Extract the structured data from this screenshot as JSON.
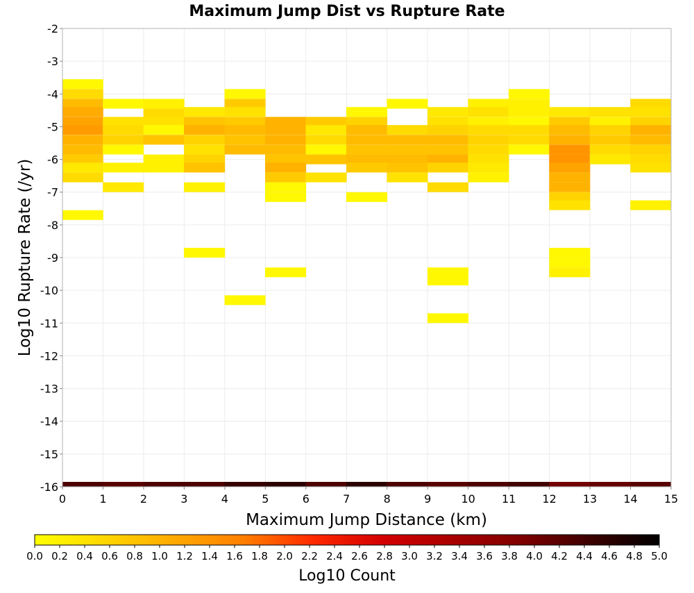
{
  "chart_data": {
    "type": "heatmap",
    "title": "Maximum Jump Dist vs Rupture Rate",
    "xlabel": "Maximum Jump Distance (km)",
    "ylabel": "Log10 Rupture Rate (/yr)",
    "xlim": [
      0,
      15
    ],
    "ylim": [
      -16,
      -2
    ],
    "x_ticks": [
      "0",
      "1",
      "2",
      "3",
      "4",
      "5",
      "6",
      "7",
      "8",
      "9",
      "10",
      "11",
      "12",
      "13",
      "14",
      "15"
    ],
    "y_ticks": [
      "-2",
      "-3",
      "-4",
      "-5",
      "-6",
      "-7",
      "-8",
      "-9",
      "-10",
      "-11",
      "-12",
      "-13",
      "-14",
      "-15",
      "-16"
    ],
    "grid": true,
    "bin_width_x": 1,
    "bin_height_y": 0.285,
    "colorbar": {
      "label": "Log10 Count",
      "range": [
        0,
        5
      ],
      "tick_labels": [
        "0.0",
        "0.2",
        "0.4",
        "0.6",
        "0.8",
        "1.0",
        "1.2",
        "1.4",
        "1.6",
        "1.8",
        "2.0",
        "2.2",
        "2.4",
        "2.6",
        "2.8",
        "3.0",
        "3.2",
        "3.4",
        "3.6",
        "3.8",
        "4.0",
        "4.2",
        "4.4",
        "4.6",
        "4.8",
        "5.0"
      ],
      "colors": [
        "#ffff00",
        "#ffd700",
        "#ffaa00",
        "#ff7f00",
        "#ff2a00",
        "#d40000",
        "#aa0000",
        "#7f0000",
        "#3c0000",
        "#000000"
      ]
    },
    "columns": [
      {
        "x": 0.5,
        "cells": [
          [
            -3.7,
            0.1
          ],
          [
            -4.0,
            0.5
          ],
          [
            -4.3,
            0.9
          ],
          [
            -4.55,
            1.1
          ],
          [
            -4.85,
            1.2
          ],
          [
            -5.1,
            1.3
          ],
          [
            -5.4,
            1.0
          ],
          [
            -5.7,
            0.9
          ],
          [
            -6.0,
            0.7
          ],
          [
            -6.25,
            0.3
          ],
          [
            -6.55,
            0.5
          ],
          [
            -7.7,
            0.1
          ],
          [
            -16.0,
            4.3
          ]
        ]
      },
      {
        "x": 1.5,
        "cells": [
          [
            -4.3,
            0.1
          ],
          [
            -4.85,
            0.4
          ],
          [
            -5.1,
            0.5
          ],
          [
            -5.4,
            0.6
          ],
          [
            -5.7,
            0.1
          ],
          [
            -6.25,
            0.2
          ],
          [
            -6.85,
            0.3
          ],
          [
            -16.0,
            4.2
          ]
        ]
      },
      {
        "x": 2.5,
        "cells": [
          [
            -4.3,
            0.2
          ],
          [
            -4.6,
            0.5
          ],
          [
            -4.85,
            0.4
          ],
          [
            -5.1,
            0.1
          ],
          [
            -5.4,
            0.8
          ],
          [
            -6.0,
            0.2
          ],
          [
            -6.25,
            0.2
          ],
          [
            -16.0,
            4.3
          ]
        ]
      },
      {
        "x": 3.5,
        "cells": [
          [
            -4.55,
            0.3
          ],
          [
            -4.85,
            0.8
          ],
          [
            -5.1,
            1.0
          ],
          [
            -5.4,
            0.6
          ],
          [
            -5.7,
            0.4
          ],
          [
            -6.0,
            0.6
          ],
          [
            -6.25,
            0.8
          ],
          [
            -6.85,
            0.2
          ],
          [
            -8.85,
            0.1
          ],
          [
            -16.0,
            4.3
          ]
        ]
      },
      {
        "x": 4.5,
        "cells": [
          [
            -4.0,
            0.1
          ],
          [
            -4.3,
            0.7
          ],
          [
            -4.55,
            0.4
          ],
          [
            -4.85,
            0.7
          ],
          [
            -5.1,
            0.9
          ],
          [
            -5.4,
            0.8
          ],
          [
            -5.7,
            0.9
          ],
          [
            -10.3,
            0.1
          ],
          [
            -16.0,
            4.5
          ]
        ]
      },
      {
        "x": 5.5,
        "cells": [
          [
            -4.85,
            1.0
          ],
          [
            -5.1,
            1.0
          ],
          [
            -5.4,
            1.0
          ],
          [
            -5.7,
            0.9
          ],
          [
            -6.0,
            0.8
          ],
          [
            -6.25,
            1.0
          ],
          [
            -6.55,
            0.7
          ],
          [
            -6.85,
            0.1
          ],
          [
            -7.15,
            0.1
          ],
          [
            -9.45,
            0.1
          ],
          [
            -16.0,
            4.6
          ]
        ]
      },
      {
        "x": 6.5,
        "cells": [
          [
            -4.85,
            0.7
          ],
          [
            -5.1,
            0.3
          ],
          [
            -5.4,
            0.5
          ],
          [
            -5.7,
            0.1
          ],
          [
            -6.0,
            0.8
          ],
          [
            -6.55,
            0.4
          ],
          [
            -16.0,
            4.3
          ]
        ]
      },
      {
        "x": 7.5,
        "cells": [
          [
            -4.55,
            0.1
          ],
          [
            -4.85,
            0.6
          ],
          [
            -5.1,
            0.9
          ],
          [
            -5.4,
            0.9
          ],
          [
            -5.7,
            0.8
          ],
          [
            -6.0,
            0.9
          ],
          [
            -6.25,
            0.7
          ],
          [
            -7.15,
            0.1
          ],
          [
            -16.0,
            4.6
          ]
        ]
      },
      {
        "x": 8.5,
        "cells": [
          [
            -4.3,
            0.1
          ],
          [
            -5.1,
            0.5
          ],
          [
            -5.4,
            0.9
          ],
          [
            -5.7,
            0.8
          ],
          [
            -6.0,
            0.9
          ],
          [
            -6.25,
            0.8
          ],
          [
            -6.55,
            0.4
          ],
          [
            -16.0,
            4.3
          ]
        ]
      },
      {
        "x": 9.5,
        "cells": [
          [
            -4.55,
            0.3
          ],
          [
            -4.85,
            0.4
          ],
          [
            -5.1,
            0.6
          ],
          [
            -5.4,
            0.9
          ],
          [
            -5.7,
            0.8
          ],
          [
            -6.0,
            1.0
          ],
          [
            -6.25,
            0.6
          ],
          [
            -6.85,
            0.5
          ],
          [
            -9.45,
            0.1
          ],
          [
            -9.7,
            0.1
          ],
          [
            -10.85,
            0.1
          ],
          [
            -16.0,
            4.2
          ]
        ]
      },
      {
        "x": 10.5,
        "cells": [
          [
            -4.3,
            0.2
          ],
          [
            -4.55,
            0.4
          ],
          [
            -4.85,
            0.2
          ],
          [
            -5.1,
            0.5
          ],
          [
            -5.4,
            0.6
          ],
          [
            -5.7,
            0.5
          ],
          [
            -6.0,
            0.4
          ],
          [
            -6.25,
            0.3
          ],
          [
            -6.55,
            0.2
          ],
          [
            -16.0,
            4.3
          ]
        ]
      },
      {
        "x": 11.5,
        "cells": [
          [
            -4.0,
            0.1
          ],
          [
            -4.3,
            0.2
          ],
          [
            -4.55,
            0.2
          ],
          [
            -4.85,
            0.1
          ],
          [
            -5.1,
            0.5
          ],
          [
            -5.4,
            0.5
          ],
          [
            -5.7,
            0.1
          ],
          [
            -16.0,
            4.4
          ]
        ]
      },
      {
        "x": 12.5,
        "cells": [
          [
            -4.55,
            0.3
          ],
          [
            -4.85,
            0.7
          ],
          [
            -5.1,
            0.9
          ],
          [
            -5.4,
            1.0
          ],
          [
            -5.7,
            1.4
          ],
          [
            -6.0,
            1.4
          ],
          [
            -6.25,
            1.2
          ],
          [
            -6.55,
            1.0
          ],
          [
            -6.85,
            1.0
          ],
          [
            -7.15,
            0.6
          ],
          [
            -7.4,
            0.4
          ],
          [
            -8.85,
            0.1
          ],
          [
            -9.15,
            0.1
          ],
          [
            -9.45,
            0.2
          ],
          [
            -16.0,
            4.0
          ]
        ]
      },
      {
        "x": 13.5,
        "cells": [
          [
            -4.55,
            0.4
          ],
          [
            -4.85,
            0.2
          ],
          [
            -5.1,
            0.6
          ],
          [
            -5.4,
            0.7
          ],
          [
            -5.7,
            0.5
          ],
          [
            -6.0,
            0.3
          ],
          [
            -16.0,
            4.1
          ]
        ]
      },
      {
        "x": 14.5,
        "cells": [
          [
            -4.3,
            0.5
          ],
          [
            -4.55,
            0.4
          ],
          [
            -4.85,
            0.6
          ],
          [
            -5.1,
            1.0
          ],
          [
            -5.4,
            0.9
          ],
          [
            -5.7,
            0.6
          ],
          [
            -6.0,
            0.5
          ],
          [
            -6.25,
            0.4
          ],
          [
            -7.4,
            0.2
          ],
          [
            -16.0,
            4.2
          ]
        ]
      }
    ]
  }
}
